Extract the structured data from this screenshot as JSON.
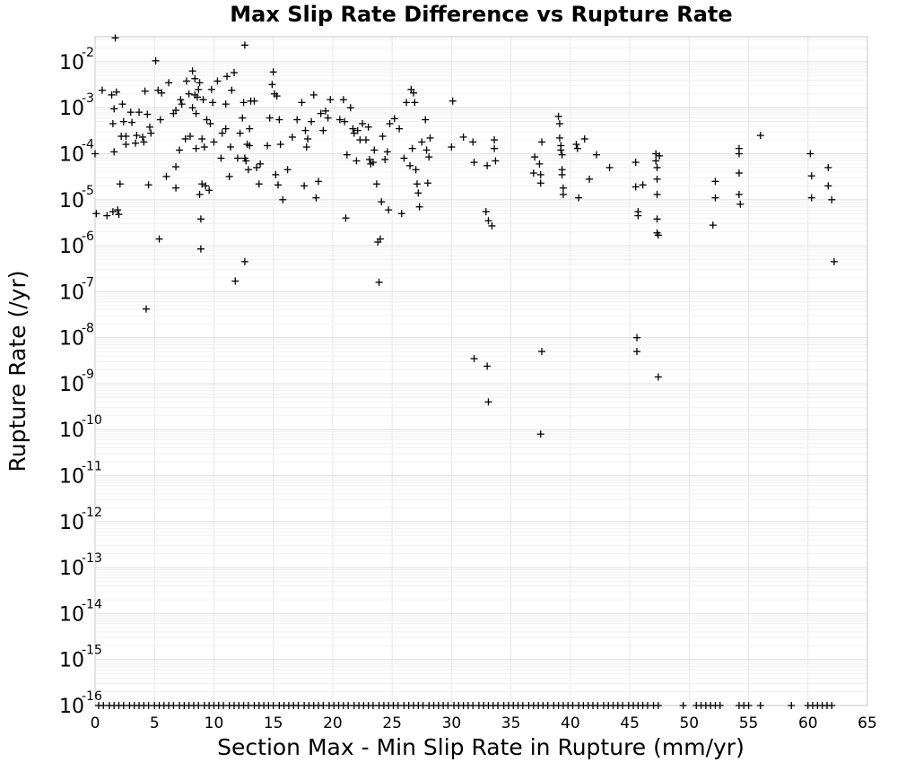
{
  "chart_data": {
    "type": "scatter",
    "title": "Max Slip Rate Difference vs Rupture Rate",
    "xlabel": "Section Max - Min Slip Rate in Rupture (mm/yr)",
    "ylabel": "Rupture Rate (/yr)",
    "xlim": [
      0,
      65
    ],
    "ylim": [
      1e-16,
      0.035
    ],
    "y_scale": "log",
    "grid": true,
    "legend": "none",
    "marker": "plus",
    "marker_color": "#000000",
    "x_ticks": [
      0,
      5,
      10,
      15,
      20,
      25,
      30,
      35,
      40,
      45,
      50,
      55,
      60,
      65
    ],
    "y_ticks": [
      {
        "base": "10",
        "exp": "-16"
      },
      {
        "base": "10",
        "exp": "-15"
      },
      {
        "base": "10",
        "exp": "-14"
      },
      {
        "base": "10",
        "exp": "-13"
      },
      {
        "base": "10",
        "exp": "-12"
      },
      {
        "base": "10",
        "exp": "-11"
      },
      {
        "base": "10",
        "exp": "-10"
      },
      {
        "base": "10",
        "exp": "-9"
      },
      {
        "base": "10",
        "exp": "-8"
      },
      {
        "base": "10",
        "exp": "-7"
      },
      {
        "base": "10",
        "exp": "-6"
      },
      {
        "base": "10",
        "exp": "-5"
      },
      {
        "base": "10",
        "exp": "-4"
      },
      {
        "base": "10",
        "exp": "-3"
      },
      {
        "base": "10",
        "exp": "-2"
      }
    ],
    "points": [
      [
        0,
        0.0001
      ],
      [
        0.1,
        5e-06
      ],
      [
        0.6,
        0.0024
      ],
      [
        1.0,
        4.5e-06
      ],
      [
        1.4,
        0.0019
      ],
      [
        1.5,
        5.5e-06
      ],
      [
        1.5,
        0.00045
      ],
      [
        1.6,
        0.00095
      ],
      [
        1.6,
        0.00011
      ],
      [
        1.7,
        0.033
      ],
      [
        1.8,
        0.0022
      ],
      [
        1.9,
        6e-06
      ],
      [
        2.0,
        4.8e-06
      ],
      [
        2.1,
        2.2e-05
      ],
      [
        2.2,
        0.00024
      ],
      [
        2.3,
        0.0012
      ],
      [
        2.4,
        0.0005
      ],
      [
        2.6,
        0.00016
      ],
      [
        2.6,
        0.00024
      ],
      [
        3.0,
        0.0008
      ],
      [
        3.1,
        0.00048
      ],
      [
        3.4,
        0.00017
      ],
      [
        3.5,
        0.00025
      ],
      [
        3.7,
        0.0008
      ],
      [
        4.0,
        0.00023
      ],
      [
        4.1,
        0.00018
      ],
      [
        4.2,
        0.0023
      ],
      [
        4.3,
        4.2e-08
      ],
      [
        4.4,
        0.00072
      ],
      [
        4.5,
        2.1e-05
      ],
      [
        4.6,
        0.00038
      ],
      [
        4.7,
        0.00028
      ],
      [
        5.1,
        0.0105
      ],
      [
        5.3,
        0.0024
      ],
      [
        5.4,
        1.4e-06
      ],
      [
        5.5,
        0.00055
      ],
      [
        5.6,
        0.0021
      ],
      [
        6.0,
        3.2e-05
      ],
      [
        6.2,
        0.0035
      ],
      [
        6.6,
        0.00075
      ],
      [
        6.8,
        5.2e-05
      ],
      [
        6.8,
        0.00088
      ],
      [
        6.8,
        1.8e-05
      ],
      [
        7.1,
        0.00012
      ],
      [
        7.2,
        0.0015
      ],
      [
        7.3,
        0.0012
      ],
      [
        7.6,
        0.00021
      ],
      [
        7.7,
        0.0038
      ],
      [
        7.9,
        0.002
      ],
      [
        8.0,
        0.00024
      ],
      [
        8.2,
        0.0063
      ],
      [
        8.2,
        0.001
      ],
      [
        8.4,
        0.0043
      ],
      [
        8.4,
        0.0019
      ],
      [
        8.5,
        0.00013
      ],
      [
        8.5,
        0.00075
      ],
      [
        8.6,
        0.0017
      ],
      [
        8.7,
        0.0025
      ],
      [
        8.8,
        0.0035
      ],
      [
        8.8,
        1.3e-05
      ],
      [
        8.9,
        3.8e-06
      ],
      [
        8.9,
        8.5e-07
      ],
      [
        9.0,
        2.2e-05
      ],
      [
        9.0,
        0.00021
      ],
      [
        9.1,
        0.0015
      ],
      [
        9.2,
        0.00014
      ],
      [
        9.3,
        2e-05
      ],
      [
        9.4,
        0.00055
      ],
      [
        9.6,
        1.6e-05
      ],
      [
        9.7,
        0.00045
      ],
      [
        9.8,
        0.0025
      ],
      [
        9.9,
        0.0013
      ],
      [
        10.0,
        0.00018
      ],
      [
        10.3,
        0.0038
      ],
      [
        10.6,
        8e-05
      ],
      [
        10.7,
        0.00028
      ],
      [
        11.0,
        0.0012
      ],
      [
        11.0,
        0.00035
      ],
      [
        11.1,
        0.0048
      ],
      [
        11.3,
        3.2e-05
      ],
      [
        11.4,
        0.00014
      ],
      [
        11.5,
        0.0024
      ],
      [
        11.7,
        0.0058
      ],
      [
        11.8,
        1.7e-07
      ],
      [
        12.0,
        8e-05
      ],
      [
        12.2,
        0.00028
      ],
      [
        12.4,
        0.0006
      ],
      [
        12.5,
        0.0013
      ],
      [
        12.6,
        8e-05
      ],
      [
        12.6,
        4.5e-07
      ],
      [
        12.6,
        0.023
      ],
      [
        12.7,
        7e-05
      ],
      [
        12.8,
        0.00016
      ],
      [
        12.9,
        4.5e-05
      ],
      [
        13.0,
        0.00015
      ],
      [
        13.0,
        0.00035
      ],
      [
        13.1,
        0.0014
      ],
      [
        13.4,
        0.0014
      ],
      [
        13.6,
        5e-05
      ],
      [
        13.8,
        2.2e-05
      ],
      [
        13.9,
        6e-05
      ],
      [
        14.5,
        0.00015
      ],
      [
        14.7,
        0.0006
      ],
      [
        14.9,
        0.0032
      ],
      [
        15.0,
        0.006
      ],
      [
        15.1,
        0.002
      ],
      [
        15.2,
        3.5e-05
      ],
      [
        15.3,
        0.0018
      ],
      [
        15.4,
        2.1e-05
      ],
      [
        15.5,
        0.00055
      ],
      [
        15.6,
        0.00016
      ],
      [
        15.8,
        1e-05
      ],
      [
        16.2,
        4.5e-05
      ],
      [
        16.6,
        0.00023
      ],
      [
        17.0,
        0.00055
      ],
      [
        17.4,
        0.0013
      ],
      [
        17.6,
        2e-05
      ],
      [
        17.7,
        0.00032
      ],
      [
        17.8,
        0.00014
      ],
      [
        17.9,
        0.00021
      ],
      [
        18.2,
        0.0005
      ],
      [
        18.4,
        0.0019
      ],
      [
        18.6,
        1.1e-05
      ],
      [
        18.8,
        2.5e-05
      ],
      [
        19.0,
        0.00075
      ],
      [
        19.2,
        0.00032
      ],
      [
        19.4,
        0.00085
      ],
      [
        19.6,
        0.0006
      ],
      [
        19.8,
        0.0015
      ],
      [
        20.6,
        0.00055
      ],
      [
        20.9,
        0.0015
      ],
      [
        21.0,
        0.0005
      ],
      [
        21.1,
        4e-06
      ],
      [
        21.2,
        9.5e-05
      ],
      [
        21.5,
        0.001
      ],
      [
        21.7,
        0.00035
      ],
      [
        21.8,
        0.00028
      ],
      [
        22.0,
        7e-05
      ],
      [
        22.1,
        0.00032
      ],
      [
        22.3,
        0.0002
      ],
      [
        22.5,
        0.00045
      ],
      [
        22.8,
        0.0002
      ],
      [
        23.0,
        0.00038
      ],
      [
        23.1,
        7.5e-05
      ],
      [
        23.2,
        6e-05
      ],
      [
        23.4,
        6.5e-05
      ],
      [
        23.5,
        0.00012
      ],
      [
        23.7,
        2.2e-05
      ],
      [
        23.8,
        1.2e-06
      ],
      [
        23.9,
        1.6e-07
      ],
      [
        24.0,
        1.4e-06
      ],
      [
        24.1,
        9e-06
      ],
      [
        24.2,
        0.00024
      ],
      [
        24.4,
        7.5e-05
      ],
      [
        24.6,
        0.00011
      ],
      [
        24.7,
        6e-06
      ],
      [
        24.8,
        0.00045
      ],
      [
        25.2,
        0.00058
      ],
      [
        25.6,
        0.00035
      ],
      [
        25.8,
        5e-06
      ],
      [
        26.0,
        8e-05
      ],
      [
        26.2,
        0.0013
      ],
      [
        26.5,
        5.5e-05
      ],
      [
        26.6,
        0.0025
      ],
      [
        26.7,
        0.00013
      ],
      [
        26.8,
        0.0021
      ],
      [
        26.9,
        0.0013
      ],
      [
        27.0,
        4.5e-05
      ],
      [
        27.1,
        2.2e-05
      ],
      [
        27.2,
        1.4e-05
      ],
      [
        27.3,
        7e-06
      ],
      [
        27.5,
        0.00018
      ],
      [
        27.8,
        0.00055
      ],
      [
        27.9,
        0.00012
      ],
      [
        28.0,
        2.3e-05
      ],
      [
        28.1,
        8.5e-05
      ],
      [
        28.2,
        0.00022
      ],
      [
        30.0,
        0.00014
      ],
      [
        30.1,
        0.0014
      ],
      [
        31.0,
        0.00023
      ],
      [
        31.8,
        0.00018
      ],
      [
        31.9,
        6.5e-05
      ],
      [
        31.9,
        3.5e-09
      ],
      [
        32.9,
        5.5e-06
      ],
      [
        33.0,
        5.5e-05
      ],
      [
        33.0,
        2.4e-09
      ],
      [
        33.1,
        4e-10
      ],
      [
        33.1,
        3.5e-06
      ],
      [
        33.4,
        2.7e-06
      ],
      [
        33.6,
        0.0002
      ],
      [
        33.6,
        0.00013
      ],
      [
        33.7,
        7e-05
      ],
      [
        36.9,
        3.8e-05
      ],
      [
        37.0,
        8.5e-05
      ],
      [
        37.4,
        6e-05
      ],
      [
        37.5,
        2.3e-05
      ],
      [
        37.5,
        3.5e-05
      ],
      [
        37.5,
        8e-11
      ],
      [
        37.6,
        5e-09
      ],
      [
        37.6,
        0.00018
      ],
      [
        39.0,
        0.00065
      ],
      [
        39.1,
        0.00045
      ],
      [
        39.1,
        0.00022
      ],
      [
        39.2,
        0.00015
      ],
      [
        39.2,
        0.00012
      ],
      [
        39.3,
        9.5e-05
      ],
      [
        39.3,
        4.5e-05
      ],
      [
        39.3,
        3.5e-05
      ],
      [
        39.4,
        1.8e-05
      ],
      [
        39.4,
        1.3e-05
      ],
      [
        40.5,
        0.00016
      ],
      [
        40.6,
        0.00013
      ],
      [
        40.7,
        1.1e-05
      ],
      [
        41.2,
        0.00021
      ],
      [
        41.6,
        2.8e-05
      ],
      [
        42.2,
        9.5e-05
      ],
      [
        43.3,
        5e-05
      ],
      [
        45.5,
        6.5e-05
      ],
      [
        45.5,
        1.9e-05
      ],
      [
        45.6,
        1e-08
      ],
      [
        45.6,
        5e-09
      ],
      [
        45.7,
        5.5e-06
      ],
      [
        45.7,
        4.5e-06
      ],
      [
        46.1,
        2.1e-05
      ],
      [
        47.2,
        0.0001
      ],
      [
        47.2,
        7e-05
      ],
      [
        47.3,
        5e-05
      ],
      [
        47.3,
        2.8e-05
      ],
      [
        47.3,
        1.3e-05
      ],
      [
        47.3,
        3.8e-06
      ],
      [
        47.3,
        1.9e-06
      ],
      [
        47.4,
        1.7e-06
      ],
      [
        47.4,
        1.4e-09
      ],
      [
        47.5,
        9e-05
      ],
      [
        52.0,
        2.8e-06
      ],
      [
        52.2,
        1.1e-05
      ],
      [
        52.2,
        2.5e-05
      ],
      [
        54.2,
        0.00013
      ],
      [
        54.2,
        0.0001
      ],
      [
        54.2,
        3.8e-05
      ],
      [
        54.2,
        1.3e-05
      ],
      [
        54.3,
        8e-06
      ],
      [
        56.0,
        0.00025
      ],
      [
        60.2,
        0.0001
      ],
      [
        60.3,
        3.3e-05
      ],
      [
        60.3,
        1.1e-05
      ],
      [
        61.7,
        5e-05
      ],
      [
        61.7,
        2e-05
      ],
      [
        62.0,
        1e-05
      ],
      [
        62.2,
        4.5e-07
      ]
    ],
    "baseline_points_y": 1e-16,
    "baseline_points_x": [
      0.3,
      0.7,
      1.2,
      1.6,
      2.0,
      2.4,
      2.9,
      3.3,
      3.7,
      4.1,
      4.5,
      5.0,
      5.4,
      5.8,
      6.2,
      6.6,
      7.1,
      7.5,
      7.9,
      8.3,
      8.7,
      9.2,
      9.6,
      10.0,
      10.4,
      10.8,
      11.3,
      11.7,
      12.1,
      12.5,
      12.9,
      13.4,
      13.8,
      14.2,
      14.6,
      15.0,
      15.5,
      15.9,
      16.3,
      16.7,
      17.1,
      17.6,
      18.0,
      18.4,
      18.8,
      19.2,
      19.7,
      20.1,
      20.5,
      20.9,
      21.3,
      21.8,
      22.2,
      22.6,
      23.0,
      23.4,
      23.9,
      24.3,
      24.7,
      25.1,
      25.5,
      26.0,
      26.4,
      26.8,
      27.2,
      27.6,
      28.1,
      28.5,
      28.9,
      29.3,
      29.7,
      30.2,
      30.6,
      31.0,
      31.4,
      31.8,
      32.3,
      32.7,
      33.1,
      33.5,
      33.9,
      34.4,
      34.8,
      35.2,
      35.6,
      36.0,
      36.5,
      36.9,
      37.3,
      37.7,
      38.1,
      38.6,
      39.0,
      39.4,
      39.8,
      40.2,
      40.7,
      41.1,
      41.5,
      41.9,
      42.3,
      42.8,
      43.2,
      43.6,
      44.0,
      44.4,
      44.9,
      45.3,
      45.7,
      46.1,
      46.5,
      47.0,
      47.4,
      49.5,
      50.6,
      51.0,
      51.4,
      51.8,
      52.2,
      52.6,
      54.2,
      54.6,
      55.0,
      56.0,
      58.6,
      60.0,
      60.4,
      60.8,
      61.2,
      61.6,
      62.0
    ]
  }
}
